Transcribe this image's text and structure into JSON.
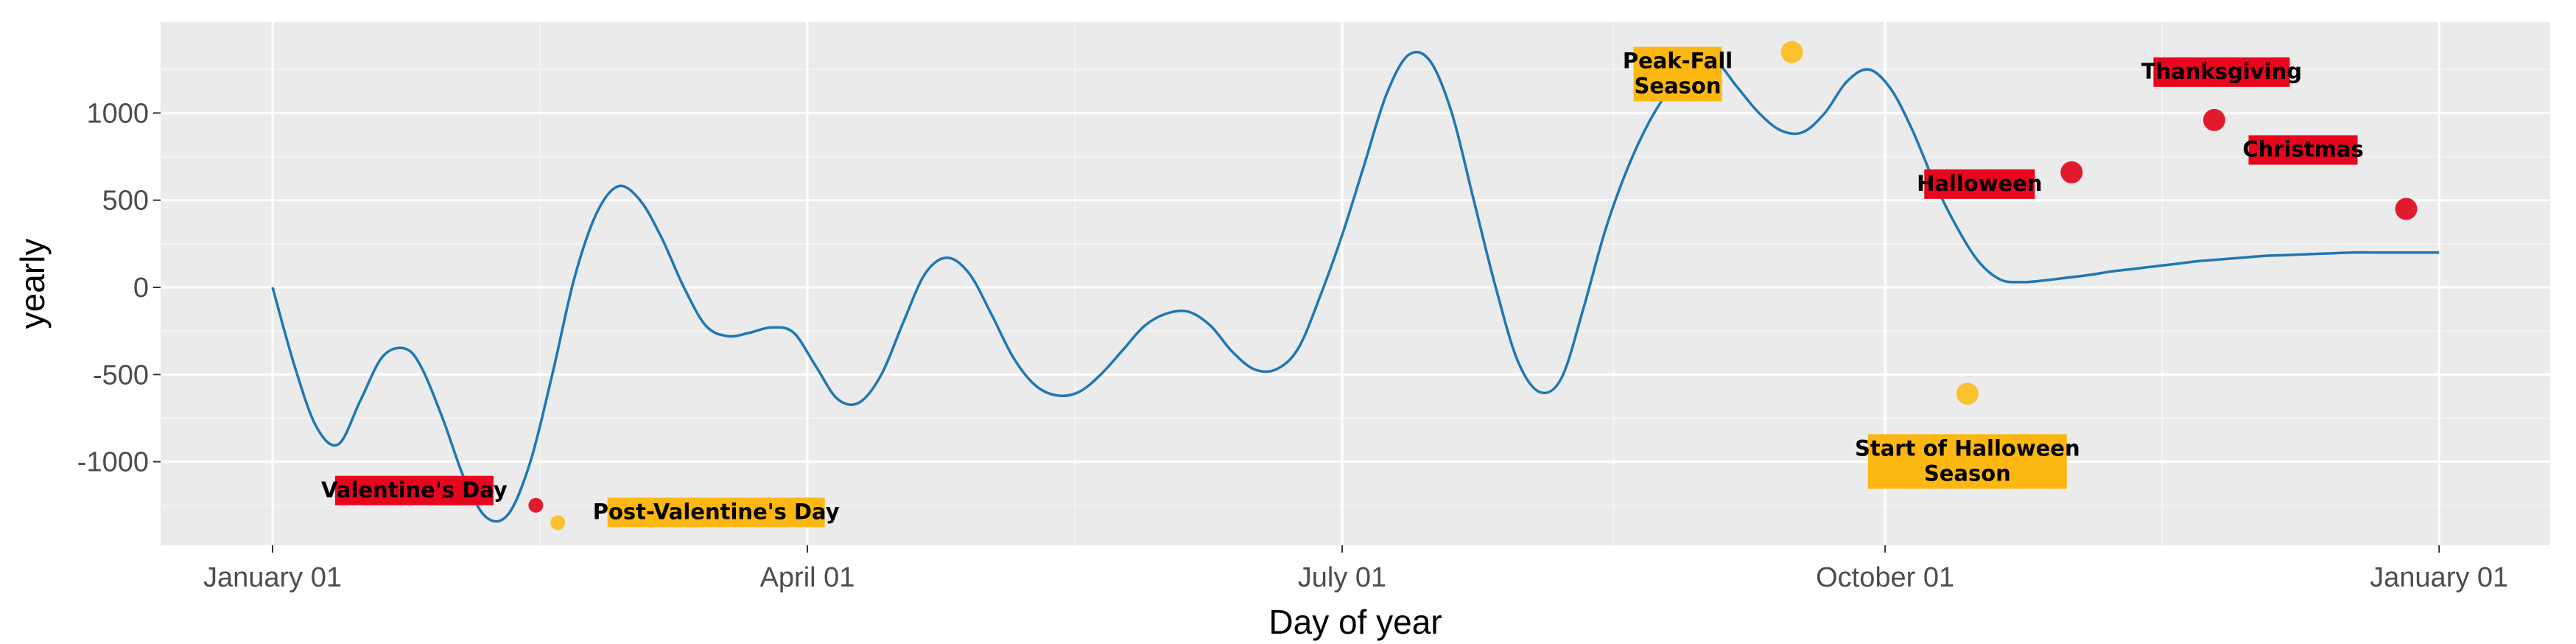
{
  "chart_data": {
    "type": "line",
    "title": "",
    "xlabel": "Day of year",
    "ylabel": "yearly",
    "xlim": [
      -14,
      380
    ],
    "ylim": [
      -1480,
      1500
    ],
    "grid": true,
    "x_ticks": [
      {
        "value": 0,
        "label": "January 01"
      },
      {
        "value": 97.5,
        "label": "April 01"
      },
      {
        "value": 195,
        "label": "July 01"
      },
      {
        "value": 294,
        "label": "October 01"
      },
      {
        "value": 395,
        "label": "January 01"
      }
    ],
    "y_ticks": [
      -1000,
      -500,
      0,
      500,
      1000
    ],
    "line_color": "#1f77b4",
    "series": [
      {
        "x": [
          0,
          4,
          8,
          12,
          16,
          20,
          24,
          27,
          31,
          35,
          39,
          43,
          47,
          51,
          55,
          59,
          63,
          67,
          71,
          75,
          79,
          83,
          87,
          91,
          95,
          99,
          103,
          107,
          111,
          115,
          119,
          123,
          127,
          131,
          135,
          139,
          143,
          147,
          151,
          155,
          159,
          163,
          167,
          171,
          175,
          179,
          183,
          187,
          191,
          195,
          199,
          203,
          207,
          211,
          215,
          219,
          223,
          227,
          231,
          235,
          239,
          243,
          247,
          251,
          255,
          259,
          263,
          267,
          271,
          275,
          279,
          283,
          287,
          291,
          295,
          299,
          303,
          307,
          311,
          315,
          319,
          323,
          327,
          331,
          335,
          339,
          343,
          347,
          351,
          355,
          359,
          363,
          367,
          371,
          375,
          379,
          383,
          387,
          391,
          395
        ],
        "y": [
          0,
          -450,
          -800,
          -900,
          -650,
          -400,
          -350,
          -450,
          -750,
          -1100,
          -1320,
          -1300,
          -1000,
          -500,
          50,
          420,
          580,
          500,
          280,
          0,
          -220,
          -280,
          -260,
          -230,
          -260,
          -450,
          -640,
          -660,
          -500,
          -200,
          80,
          170,
          80,
          -150,
          -400,
          -560,
          -620,
          -600,
          -500,
          -360,
          -220,
          -150,
          -140,
          -220,
          -370,
          -470,
          -470,
          -350,
          -50,
          300,
          700,
          1100,
          1330,
          1300,
          1000,
          500,
          0,
          -420,
          -600,
          -520,
          -120,
          330,
          680,
          950,
          1150,
          1300,
          1300,
          1150,
          1000,
          900,
          890,
          1000,
          1180,
          1250,
          1140,
          900,
          600,
          350,
          150,
          45,
          30,
          40,
          55,
          70,
          90,
          105,
          120,
          135,
          150,
          160,
          170,
          180,
          185,
          190,
          195,
          200,
          200,
          200,
          200,
          200
        ]
      }
    ],
    "annotations": [
      {
        "label": "Valentine's Day",
        "x": 48,
        "y": -1250,
        "color": "#e8061f",
        "marker_color": "#e01b2d",
        "marker_size": "small"
      },
      {
        "label": "Post-Valentine's Day",
        "x": 52,
        "y": -1350,
        "color": "#fcb712",
        "marker_color": "#fbc02d",
        "marker_size": "small"
      },
      {
        "label": "Peak-Fall Season",
        "x": 277,
        "y": 1350,
        "color": "#fcb712",
        "marker_color": "#fbc02d",
        "marker_size": "large"
      },
      {
        "label": "Start of Halloween Season",
        "x": 309,
        "y": -610,
        "color": "#fcb712",
        "marker_color": "#fbc02d",
        "marker_size": "large"
      },
      {
        "label": "Halloween",
        "x": 328,
        "y": 660,
        "color": "#e8061f",
        "marker_color": "#e01b2d",
        "marker_size": "large"
      },
      {
        "label": "Thanksgiving",
        "x": 354,
        "y": 960,
        "color": "#e8061f",
        "marker_color": "#e01b2d",
        "marker_size": "large"
      },
      {
        "label": "Christmas",
        "x": 389,
        "y": 450,
        "color": "#e8061f",
        "marker_color": "#e01b2d",
        "marker_size": "large"
      }
    ]
  }
}
